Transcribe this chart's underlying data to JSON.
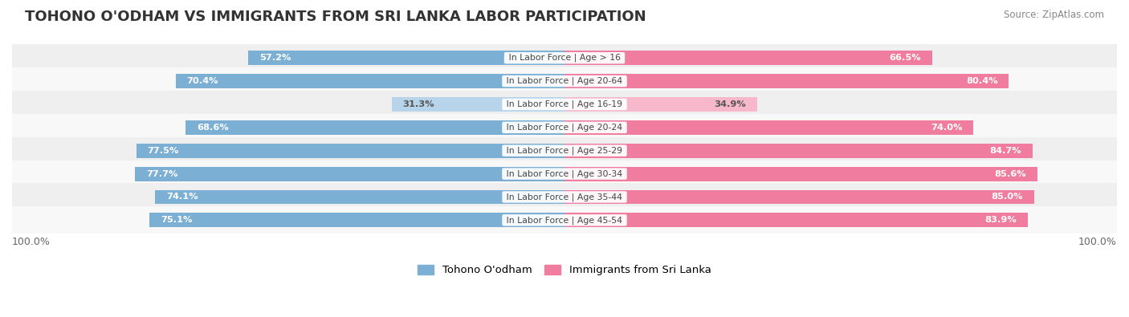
{
  "title": "TOHONO O'ODHAM VS IMMIGRANTS FROM SRI LANKA LABOR PARTICIPATION",
  "source": "Source: ZipAtlas.com",
  "categories": [
    "In Labor Force | Age > 16",
    "In Labor Force | Age 20-64",
    "In Labor Force | Age 16-19",
    "In Labor Force | Age 20-24",
    "In Labor Force | Age 25-29",
    "In Labor Force | Age 30-34",
    "In Labor Force | Age 35-44",
    "In Labor Force | Age 45-54"
  ],
  "tohono_values": [
    57.2,
    70.4,
    31.3,
    68.6,
    77.5,
    77.7,
    74.1,
    75.1
  ],
  "srilanka_values": [
    66.5,
    80.4,
    34.9,
    74.0,
    84.7,
    85.6,
    85.0,
    83.9
  ],
  "tohono_color": "#7bafd4",
  "srilanka_color": "#f07ca0",
  "tohono_light_color": "#b8d4ea",
  "srilanka_light_color": "#f7b8cc",
  "max_value": 100.0,
  "legend_tohono": "Tohono O'odham",
  "legend_srilanka": "Immigrants from Sri Lanka",
  "title_fontsize": 13,
  "bar_height": 0.62
}
